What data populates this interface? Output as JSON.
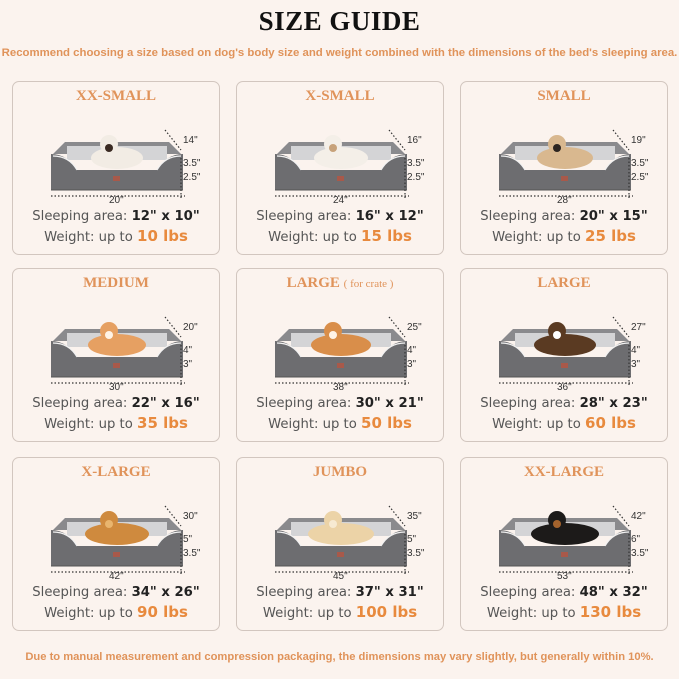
{
  "header": {
    "title": "SIZE GUIDE",
    "subtitle": "Recommend choosing a size based on dog's body size and weight combined with the dimensions of the bed's sleeping area."
  },
  "labels": {
    "sleeping_area": "Sleeping area:",
    "weight": "Weight:  up to"
  },
  "colors": {
    "accent": "#e0935a",
    "weight": "#e88a3e",
    "bed": "#6d6d70",
    "cushion": "#c9c9cb"
  },
  "sizes": [
    {
      "name": "XX-SMALL",
      "note": "",
      "pet": "cat",
      "depth": "14\"",
      "h1": "3.5\"",
      "h2": "2.5\"",
      "width": "20\"",
      "sleeping_area": "12\" x 10\"",
      "weight": "10 lbs"
    },
    {
      "name": "X-SMALL",
      "note": "",
      "pet": "dog",
      "depth": "16\"",
      "h1": "3.5\"",
      "h2": "2.5\"",
      "width": "24\"",
      "sleeping_area": "16\" x 12\"",
      "weight": "15 lbs"
    },
    {
      "name": "SMALL",
      "note": "",
      "pet": "dog",
      "depth": "19\"",
      "h1": "3.5\"",
      "h2": "2.5\"",
      "width": "28\"",
      "sleeping_area": "20\" x 15\"",
      "weight": "25 lbs"
    },
    {
      "name": "MEDIUM",
      "note": "",
      "pet": "dog",
      "depth": "20\"",
      "h1": "4\"",
      "h2": "3\"",
      "width": "30\"",
      "sleeping_area": "22\" x 16\"",
      "weight": "35 lbs"
    },
    {
      "name": "LARGE",
      "note": "( for crate )",
      "pet": "dog",
      "depth": "25\"",
      "h1": "4\"",
      "h2": "3\"",
      "width": "38\"",
      "sleeping_area": "30\" x 21\"",
      "weight": "50 lbs"
    },
    {
      "name": "LARGE",
      "note": "",
      "pet": "dog",
      "depth": "27\"",
      "h1": "4\"",
      "h2": "3\"",
      "width": "36\"",
      "sleeping_area": "28\" x 23\"",
      "weight": "60 lbs"
    },
    {
      "name": "X-LARGE",
      "note": "",
      "pet": "dog",
      "depth": "30\"",
      "h1": "5\"",
      "h2": "3.5\"",
      "width": "42\"",
      "sleeping_area": "34\" x 26\"",
      "weight": "90 lbs"
    },
    {
      "name": "JUMBO",
      "note": "",
      "pet": "dog",
      "depth": "35\"",
      "h1": "5\"",
      "h2": "3.5\"",
      "width": "45\"",
      "sleeping_area": "37\" x 31\"",
      "weight": "100 lbs"
    },
    {
      "name": "XX-LARGE",
      "note": "",
      "pet": "dog",
      "depth": "42\"",
      "h1": "6\"",
      "h2": "3.5\"",
      "width": "53\"",
      "sleeping_area": "48\" x 32\"",
      "weight": "130 lbs"
    }
  ],
  "footer": "Due to manual measurement and compression packaging, the dimensions may vary slightly, but generally within 10%."
}
